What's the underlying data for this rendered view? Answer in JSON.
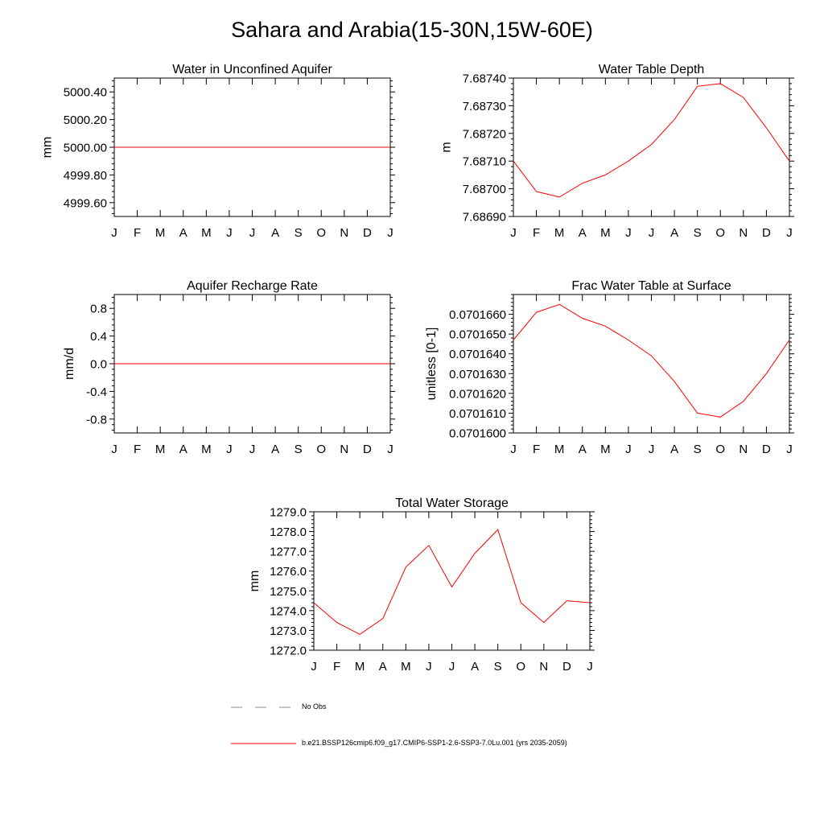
{
  "title": "Sahara and Arabia(15-30N,15W-60E)",
  "colors": {
    "series": "#ff0000",
    "obs": "#888888",
    "axis": "#000000"
  },
  "legend": {
    "obs_label": "No Obs",
    "model_label": "b.e21.BSSP126cmip6.f09_g17.CMIP6-SSP1-2.6-SSP3-7.0Lu.001 (yrs 2035-2059)"
  },
  "chart_data": [
    {
      "type": "line",
      "title": "Water in Unconfined Aquifer",
      "ylabel": "mm",
      "xticks": [
        "J",
        "F",
        "M",
        "A",
        "M",
        "J",
        "J",
        "A",
        "S",
        "O",
        "N",
        "D",
        "J"
      ],
      "ylim": [
        4999.5,
        5000.5
      ],
      "yticks": [
        4999.6,
        4999.8,
        5000.0,
        5000.2,
        5000.4
      ],
      "yticklabels": [
        "4999.60",
        "4999.80",
        "5000.00",
        "5000.20",
        "5000.40"
      ],
      "series": [
        {
          "values": [
            5000,
            5000,
            5000,
            5000,
            5000,
            5000,
            5000,
            5000,
            5000,
            5000,
            5000,
            5000,
            5000
          ]
        }
      ]
    },
    {
      "type": "line",
      "title": "Water Table Depth",
      "ylabel": "m",
      "xticks": [
        "J",
        "F",
        "M",
        "A",
        "M",
        "J",
        "J",
        "A",
        "S",
        "O",
        "N",
        "D",
        "J"
      ],
      "ylim": [
        7.6869,
        7.6874
      ],
      "yticks": [
        7.6869,
        7.687,
        7.6871,
        7.6872,
        7.6873,
        7.6874
      ],
      "yticklabels": [
        "7.68690",
        "7.68700",
        "7.68710",
        "7.68720",
        "7.68730",
        "7.68740"
      ],
      "series": [
        {
          "values": [
            7.6871,
            7.68699,
            7.68697,
            7.68702,
            7.68705,
            7.6871,
            7.68716,
            7.68725,
            7.68737,
            7.68738,
            7.68733,
            7.68722,
            7.6871
          ]
        }
      ]
    },
    {
      "type": "line",
      "title": "Aquifer Recharge Rate",
      "ylabel": "mm/d",
      "xticks": [
        "J",
        "F",
        "M",
        "A",
        "M",
        "J",
        "J",
        "A",
        "S",
        "O",
        "N",
        "D",
        "J"
      ],
      "ylim": [
        -1,
        1
      ],
      "yticks": [
        -0.8,
        -0.4,
        0.0,
        0.4,
        0.8
      ],
      "yticklabels": [
        "-0.8",
        "-0.4",
        "0.0",
        "0.4",
        "0.8"
      ],
      "series": [
        {
          "values": [
            0,
            0,
            0,
            0,
            0,
            0,
            0,
            0,
            0,
            0,
            0,
            0,
            0
          ]
        }
      ]
    },
    {
      "type": "line",
      "title": "Frac Water Table at Surface",
      "ylabel": "unitless [0-1]",
      "xticks": [
        "J",
        "F",
        "M",
        "A",
        "M",
        "J",
        "J",
        "A",
        "S",
        "O",
        "N",
        "D",
        "J"
      ],
      "ylim": [
        0.07016,
        0.070167
      ],
      "yticks": [
        0.07016,
        0.070161,
        0.070162,
        0.070163,
        0.070164,
        0.070165,
        0.070166
      ],
      "yticklabels": [
        "0.0701600",
        "0.0701610",
        "0.0701620",
        "0.0701630",
        "0.0701640",
        "0.0701650",
        "0.0701660"
      ],
      "series": [
        {
          "values": [
            0.0701647,
            0.0701661,
            0.0701665,
            0.0701658,
            0.0701654,
            0.0701647,
            0.0701639,
            0.0701626,
            0.070161,
            0.0701608,
            0.0701616,
            0.070163,
            0.0701647
          ]
        }
      ]
    },
    {
      "type": "line",
      "title": "Total Water Storage",
      "ylabel": "mm",
      "xticks": [
        "J",
        "F",
        "M",
        "A",
        "M",
        "J",
        "J",
        "A",
        "S",
        "O",
        "N",
        "D",
        "J"
      ],
      "ylim": [
        1272,
        1279
      ],
      "yticks": [
        1272,
        1273,
        1274,
        1275,
        1276,
        1277,
        1278,
        1279
      ],
      "yticklabels": [
        "1272.0",
        "1273.0",
        "1274.0",
        "1275.0",
        "1276.0",
        "1277.0",
        "1278.0",
        "1279.0"
      ],
      "series": [
        {
          "values": [
            1274.4,
            1273.4,
            1272.8,
            1273.6,
            1276.2,
            1277.3,
            1275.2,
            1276.9,
            1278.1,
            1274.4,
            1273.4,
            1274.5,
            1274.4
          ]
        }
      ]
    }
  ]
}
